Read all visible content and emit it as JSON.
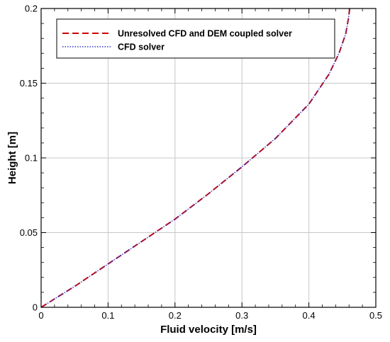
{
  "chart_data": {
    "type": "line",
    "title": "",
    "xlabel": "Fluid velocity [m/s]",
    "ylabel": "Height [m]",
    "xlim": [
      0,
      0.5
    ],
    "ylim": [
      0,
      0.2
    ],
    "xticks": [
      "0",
      "0.1",
      "0.2",
      "0.3",
      "0.4",
      "0.5"
    ],
    "yticks": [
      "0",
      "0.05",
      "0.1",
      "0.15",
      "0.2"
    ],
    "grid": true,
    "legend_position": "top-left",
    "series": [
      {
        "name": "Unresolved CFD and DEM coupled solver",
        "color": "#cc0000",
        "style": "dashed",
        "x": [
          0.0,
          0.05,
          0.1,
          0.15,
          0.2,
          0.25,
          0.3,
          0.35,
          0.4,
          0.43,
          0.445,
          0.455,
          0.459,
          0.461
        ],
        "y": [
          0.0,
          0.014,
          0.029,
          0.044,
          0.059,
          0.076,
          0.094,
          0.113,
          0.136,
          0.156,
          0.17,
          0.183,
          0.193,
          0.2
        ]
      },
      {
        "name": "CFD solver",
        "color": "#3333cc",
        "style": "dotted",
        "x": [
          0.0,
          0.05,
          0.1,
          0.15,
          0.2,
          0.25,
          0.3,
          0.35,
          0.4,
          0.43,
          0.445,
          0.455,
          0.459,
          0.461
        ],
        "y": [
          0.0,
          0.014,
          0.029,
          0.044,
          0.059,
          0.076,
          0.094,
          0.113,
          0.136,
          0.156,
          0.17,
          0.183,
          0.193,
          0.2
        ]
      }
    ]
  }
}
